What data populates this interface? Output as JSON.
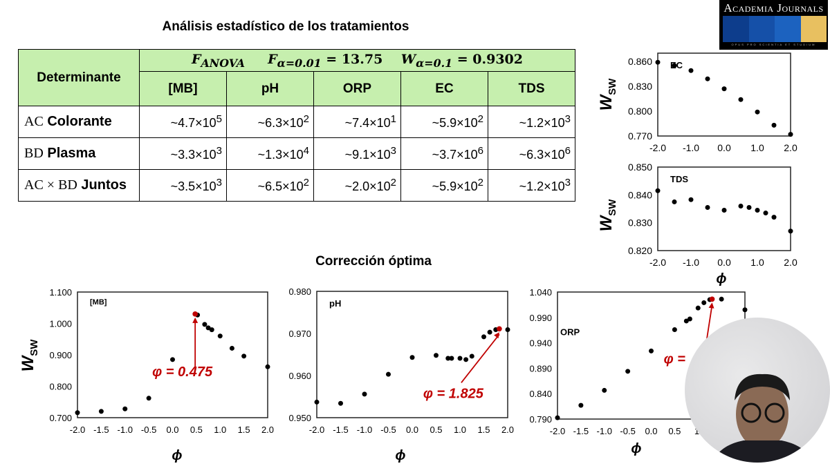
{
  "title": "Análisis estadístico de los tratamientos",
  "subtitle": "Corrección óptima",
  "logo": {
    "name": "Academia Journals",
    "motto": "OPUS PRO SCIENTIA ET STUDIUM",
    "colors": [
      "#0d3d8c",
      "#1550a8",
      "#1c62bf",
      "#e8c060"
    ]
  },
  "table": {
    "row_header": "Determinante",
    "stats_header": {
      "f_anova": "F",
      "f_anova_sub": "ANOVA",
      "f_alpha": "F",
      "f_alpha_sub": "α=0.01",
      "f_alpha_val": "= 13.75",
      "w_alpha": "W",
      "w_alpha_sub": "α=0.1",
      "w_alpha_val": "= 0.9302"
    },
    "columns": [
      "[MB]",
      "pH",
      "ORP",
      "EC",
      "TDS"
    ],
    "rows": [
      {
        "prefix": "AC",
        "label": "Colorante",
        "values": [
          [
            "~4.7×10",
            "5"
          ],
          [
            "~6.3×10",
            "2"
          ],
          [
            "~7.4×10",
            "1"
          ],
          [
            "~5.9×10",
            "2"
          ],
          [
            "~1.2×10",
            "3"
          ]
        ]
      },
      {
        "prefix": "BD",
        "label": "Plasma",
        "values": [
          [
            "~3.3×10",
            "3"
          ],
          [
            "~1.3×10",
            "4"
          ],
          [
            "~9.1×10",
            "3"
          ],
          [
            "~3.7×10",
            "6"
          ],
          [
            "~6.3×10",
            "6"
          ]
        ]
      },
      {
        "prefix": "AC × BD",
        "label": "Juntos",
        "values": [
          [
            "~3.5×10",
            "3"
          ],
          [
            "~6.5×10",
            "2"
          ],
          [
            "~2.0×10",
            "2"
          ],
          [
            "~5.9×10",
            "2"
          ],
          [
            "~1.2×10",
            "3"
          ]
        ]
      }
    ]
  },
  "axis_labels": {
    "y": "W",
    "y_sub": "SW",
    "x": "ϕ"
  },
  "chart_data": [
    {
      "type": "scatter",
      "id": "ec",
      "title": "EC",
      "xlim": [
        -2,
        2
      ],
      "ylim": [
        0.77,
        0.87
      ],
      "xticks": [
        "-2.0",
        "-1.0",
        "0.0",
        "1.0",
        "2.0"
      ],
      "xtick_vals": [
        -2,
        -1,
        0,
        1,
        2
      ],
      "yticks": [
        "0.860",
        "0.830",
        "0.800",
        "0.770"
      ],
      "ytick_vals": [
        0.86,
        0.83,
        0.8,
        0.77
      ],
      "x": [
        -2,
        -1.5,
        -1,
        -0.5,
        0,
        0.5,
        1,
        1.5,
        2
      ],
      "y": [
        0.859,
        0.855,
        0.849,
        0.839,
        0.827,
        0.814,
        0.799,
        0.783,
        0.772
      ]
    },
    {
      "type": "scatter",
      "id": "tds",
      "title": "TDS",
      "xlim": [
        -2,
        2
      ],
      "ylim": [
        0.82,
        0.85
      ],
      "xticks": [
        "-2.0",
        "-1.0",
        "0.0",
        "1.0",
        "2.0"
      ],
      "xtick_vals": [
        -2,
        -1,
        0,
        1,
        2
      ],
      "yticks": [
        "0.850",
        "0.840",
        "0.830",
        "0.820"
      ],
      "ytick_vals": [
        0.85,
        0.84,
        0.83,
        0.82
      ],
      "x": [
        -2,
        -1.5,
        -1,
        -0.5,
        0,
        0.5,
        0.75,
        1,
        1.25,
        1.5,
        2
      ],
      "y": [
        0.8415,
        0.8375,
        0.8383,
        0.8355,
        0.8345,
        0.836,
        0.8355,
        0.8345,
        0.8335,
        0.832,
        0.827
      ]
    },
    {
      "type": "scatter",
      "id": "mb",
      "title": "[MB]",
      "xlim": [
        -2,
        2
      ],
      "ylim": [
        0.7,
        1.1
      ],
      "xticks": [
        "-2.0",
        "-1.5",
        "-1.0",
        "-0.5",
        "0.0",
        "0.5",
        "1.0",
        "1.5",
        "2.0"
      ],
      "xtick_vals": [
        -2,
        -1.5,
        -1,
        -0.5,
        0,
        0.5,
        1,
        1.5,
        2
      ],
      "yticks": [
        "1.100",
        "1.000",
        "0.900",
        "0.800",
        "0.700"
      ],
      "ytick_vals": [
        1.1,
        1.0,
        0.9,
        0.8,
        0.7
      ],
      "x": [
        -2,
        -1.5,
        -1,
        -0.5,
        0,
        0.525,
        0.675,
        0.75,
        0.825,
        1,
        1.25,
        1.5,
        2
      ],
      "y": [
        0.716,
        0.72,
        0.728,
        0.762,
        0.885,
        1.027,
        0.997,
        0.986,
        0.98,
        0.96,
        0.921,
        0.896,
        0.862
      ],
      "optimum": {
        "x": 0.475,
        "y": 1.03,
        "label": "φ = 0.475"
      }
    },
    {
      "type": "scatter",
      "id": "ph",
      "title": "pH",
      "xlim": [
        -2,
        2
      ],
      "ylim": [
        0.95,
        0.98
      ],
      "xticks": [
        "-2.0",
        "-1.5",
        "-1.0",
        "-0.5",
        "0.0",
        "0.5",
        "1.0",
        "1.5",
        "2.0"
      ],
      "xtick_vals": [
        -2,
        -1.5,
        -1,
        -0.5,
        0,
        0.5,
        1,
        1.5,
        2
      ],
      "yticks": [
        "0.980",
        "0.970",
        "0.960",
        "0.950"
      ],
      "ytick_vals": [
        0.98,
        0.97,
        0.96,
        0.95
      ],
      "x": [
        -2,
        -1.5,
        -1,
        -0.5,
        0,
        0.5,
        0.75,
        0.825,
        1,
        1.125,
        1.25,
        1.5,
        1.625,
        1.75,
        2
      ],
      "y": [
        0.9537,
        0.9534,
        0.9556,
        0.9603,
        0.9643,
        0.9648,
        0.9641,
        0.9641,
        0.9641,
        0.9638,
        0.9646,
        0.9692,
        0.9703,
        0.9709,
        0.9709
      ],
      "optimum": {
        "x": 1.825,
        "y": 0.9711,
        "label": "φ = 1.825"
      }
    },
    {
      "type": "scatter",
      "id": "orp",
      "title": "ORP",
      "xlim": [
        -2,
        2
      ],
      "ylim": [
        0.79,
        1.04
      ],
      "xticks": [
        "-2.0",
        "-1.5",
        "-1.0",
        "-0.5",
        "0.0",
        "0.5",
        "1."
      ],
      "xtick_vals": [
        -2,
        -1.5,
        -1,
        -0.5,
        0,
        0.5,
        1
      ],
      "yticks": [
        "1.040",
        "0.990",
        "0.940",
        "0.890",
        "0.840",
        "0.790"
      ],
      "ytick_vals": [
        1.04,
        0.99,
        0.94,
        0.89,
        0.84,
        0.79
      ],
      "x": [
        -2,
        -1.5,
        -1,
        -0.5,
        0,
        0.5,
        0.75,
        0.825,
        1,
        1.125,
        1.25,
        1.5,
        2
      ],
      "y": [
        0.7925,
        0.817,
        0.8465,
        0.884,
        0.924,
        0.966,
        0.983,
        0.987,
        1.0085,
        1.019,
        1.025,
        1.026,
        1.005
      ],
      "optimum": {
        "x": 1.3,
        "y": 1.026,
        "label": "φ ="
      }
    }
  ]
}
